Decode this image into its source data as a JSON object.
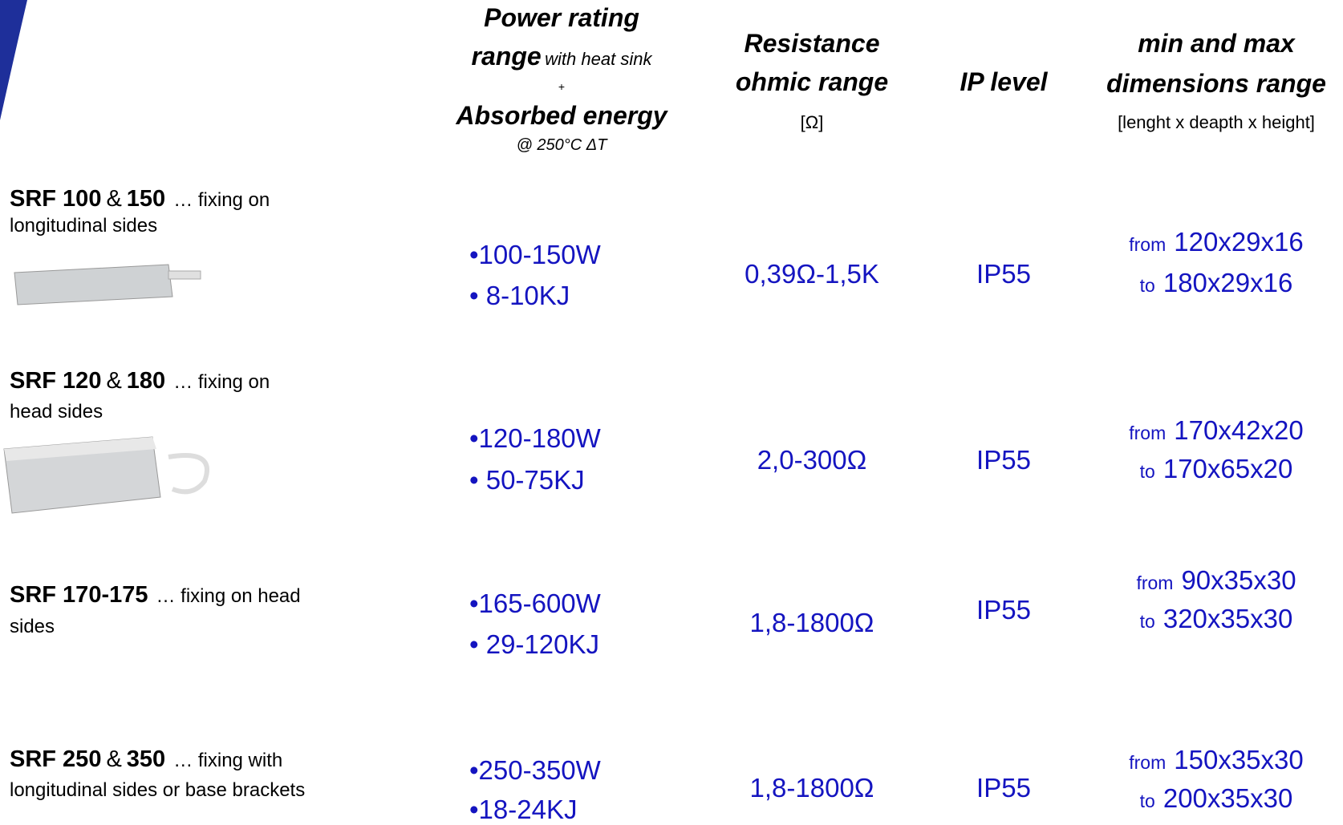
{
  "header": {
    "power": {
      "line1": "Power rating",
      "line2_bold": "range",
      "line2_note": "with heat sink",
      "plus": "+",
      "line3": "Absorbed energy",
      "line4": "@ 250°C ΔT"
    },
    "resistance": {
      "line1": "Resistance",
      "line2": "ohmic range",
      "unit": "[Ω]"
    },
    "ip": {
      "line1": "IP level"
    },
    "dimensions": {
      "line1": "min and max",
      "line2": "dimensions range",
      "unit": "[lenght x deapth x height]"
    }
  },
  "rows": [
    {
      "name": [
        "SRF 100",
        "&",
        "150"
      ],
      "description": [
        "… fixing on",
        "longitudinal sides"
      ],
      "power": [
        "•100-150W",
        "• 8-10KJ"
      ],
      "resistance": "0,39Ω-1,5K",
      "ip": "IP55",
      "from_label": "from",
      "from": "120x29x16",
      "to_label": "to",
      "to": "180x29x16"
    },
    {
      "name": [
        "SRF 120",
        "&",
        "180"
      ],
      "description": [
        "… fixing on",
        "head sides"
      ],
      "power": [
        "•120-180W",
        "• 50-75KJ"
      ],
      "resistance": "2,0-300Ω",
      "ip": "IP55",
      "from_label": "from",
      "from": "170x42x20",
      "to_label": "to",
      "to": "170x65x20"
    },
    {
      "name": [
        "SRF 170-175"
      ],
      "description": [
        "… fixing on head",
        "sides"
      ],
      "power": [
        "•165-600W",
        "• 29-120KJ"
      ],
      "resistance": "1,8-1800Ω",
      "ip": "IP55",
      "from_label": "from",
      "from": "90x35x30",
      "to_label": "to",
      "to": "320x35x30"
    },
    {
      "name": [
        "SRF 250",
        "&",
        "350"
      ],
      "description": [
        "… fixing with",
        "longitudinal sides or base brackets"
      ],
      "power": [
        "•250-350W",
        "•18-24KJ"
      ],
      "resistance": "1,8-1800Ω",
      "ip": "IP55",
      "from_label": "from",
      "from": "150x35x30",
      "to_label": "to",
      "to": "200x35x30"
    }
  ]
}
